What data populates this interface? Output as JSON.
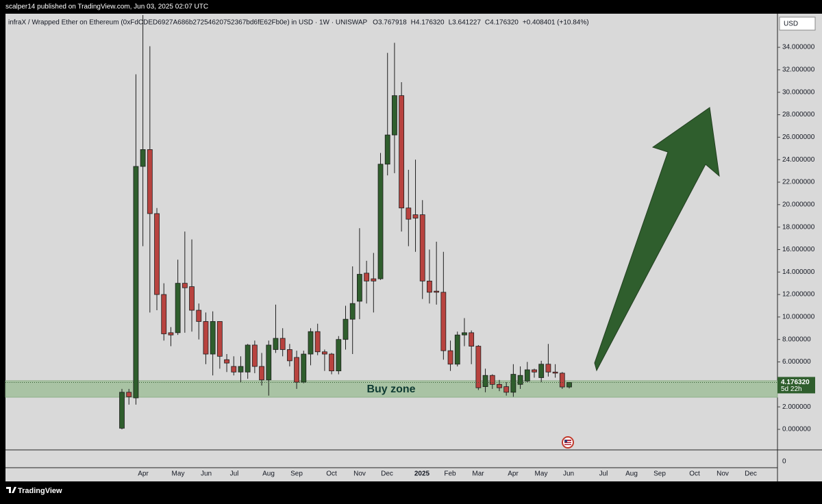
{
  "chart_data": {
    "type": "candlestick",
    "attribution": "scalper14 published on TradingView.com, Jun 03, 2025 02:07 UTC",
    "symbol": "infraX / Wrapped Ether on Ethereum (0xFdCDED6927A686b27254620752367bd6fE62Fb0e) in USD · 1W · UNISWAP",
    "ohlc_text": [
      "O3.767918",
      "H4.176320",
      "L3.641227",
      "C4.176320",
      "+0.408401 (+10.84%)"
    ],
    "currency": "USD",
    "brand": "TradingView",
    "x_labels": [
      "Apr",
      "May",
      "Jun",
      "Jul",
      "Aug",
      "Sep",
      "Oct",
      "Nov",
      "Dec",
      "2025",
      "Feb",
      "Mar",
      "Apr",
      "May",
      "Jun",
      "Jul",
      "Aug",
      "Sep",
      "Oct",
      "Nov",
      "Dec"
    ],
    "open": [
      0.1,
      3.3,
      2.8,
      23.4,
      24.9,
      19.2,
      12.0,
      8.6,
      8.6,
      13.0,
      12.7,
      10.6,
      9.6,
      6.7,
      9.6,
      6.2,
      5.6,
      5.1,
      5.1,
      7.5,
      5.6,
      4.4,
      7.1,
      8.1,
      7.1,
      6.4,
      4.2,
      6.7,
      8.7,
      6.9,
      6.7,
      5.2,
      8.0,
      9.8,
      11.4,
      13.9,
      13.4,
      13.4,
      23.6,
      26.2,
      29.7,
      19.7,
      19.1,
      19.1,
      13.2,
      12.3,
      12.2,
      7.0,
      5.8,
      8.4,
      8.6,
      7.4,
      3.8,
      4.8,
      4.0,
      3.8,
      3.3,
      4.0,
      4.3,
      5.3,
      4.6,
      5.8,
      5.1,
      5.0,
      3.767918
    ],
    "high": [
      3.6,
      3.6,
      31.6,
      38.0,
      34.1,
      19.7,
      13.0,
      9.1,
      15.1,
      17.6,
      16.9,
      11.2,
      10.4,
      10.5,
      9.6,
      6.7,
      6.5,
      6.5,
      7.6,
      7.9,
      6.8,
      7.9,
      11.1,
      9.0,
      7.6,
      7.0,
      7.0,
      9.0,
      9.4,
      7.1,
      6.8,
      8.3,
      11.0,
      14.5,
      17.9,
      15.0,
      15.7,
      24.6,
      33.5,
      34.4,
      30.9,
      23.1,
      24.0,
      20.4,
      16.0,
      16.7,
      15.8,
      7.9,
      8.7,
      9.9,
      8.8,
      7.5,
      5.4,
      4.9,
      4.4,
      4.2,
      5.8,
      5.6,
      6.0,
      5.4,
      6.1,
      7.6,
      5.8,
      5.1,
      4.17632
    ],
    "low": [
      0.0,
      2.2,
      2.2,
      16.3,
      10.4,
      10.6,
      7.9,
      7.4,
      8.4,
      8.6,
      8.7,
      8.0,
      5.8,
      4.8,
      5.4,
      5.1,
      4.8,
      4.2,
      4.5,
      5.0,
      3.9,
      3.0,
      6.8,
      6.5,
      5.6,
      3.6,
      4.1,
      5.7,
      6.6,
      5.2,
      4.9,
      4.9,
      7.1,
      6.7,
      9.8,
      11.2,
      10.4,
      13.3,
      22.6,
      22.8,
      17.6,
      16.3,
      15.8,
      11.6,
      11.2,
      11.1,
      6.2,
      5.2,
      5.6,
      7.4,
      5.8,
      3.5,
      3.3,
      3.6,
      3.4,
      3.0,
      2.9,
      3.6,
      4.2,
      4.6,
      4.2,
      4.7,
      4.6,
      3.6,
      3.641227
    ],
    "close": [
      3.3,
      2.9,
      23.4,
      24.9,
      19.2,
      12.0,
      8.5,
      8.4,
      13.0,
      12.6,
      10.6,
      9.6,
      6.7,
      9.6,
      6.5,
      5.9,
      5.1,
      5.6,
      7.5,
      5.6,
      4.4,
      7.5,
      8.1,
      7.1,
      6.1,
      4.2,
      6.7,
      8.7,
      6.9,
      6.7,
      5.2,
      8.0,
      9.8,
      11.2,
      13.8,
      13.2,
      13.2,
      23.6,
      26.2,
      29.7,
      19.7,
      18.7,
      18.8,
      13.2,
      12.2,
      12.2,
      7.0,
      5.8,
      8.4,
      8.6,
      7.4,
      3.7,
      4.8,
      4.0,
      3.7,
      3.3,
      4.9,
      4.8,
      5.3,
      5.1,
      5.8,
      5.1,
      5.0,
      3.77,
      4.17632
    ],
    "up_color": "#2f5e2d",
    "down_color": "#b8433f",
    "ylim": [
      -1.83,
      36.87
    ],
    "yticks": [
      {
        "value": 0,
        "label": "0.000000"
      },
      {
        "value": 2,
        "label": "2.000000"
      },
      {
        "value": 4,
        "label": "4.000000"
      },
      {
        "value": 6,
        "label": "6.000000"
      },
      {
        "value": 8,
        "label": "8.000000"
      },
      {
        "value": 10,
        "label": "10.000000"
      },
      {
        "value": 12,
        "label": "12.000000"
      },
      {
        "value": 14,
        "label": "14.000000"
      },
      {
        "value": 16,
        "label": "16.000000"
      },
      {
        "value": 18,
        "label": "18.000000"
      },
      {
        "value": 20,
        "label": "20.000000"
      },
      {
        "value": 22,
        "label": "22.000000"
      },
      {
        "value": 24,
        "label": "24.000000"
      },
      {
        "value": 26,
        "label": "26.000000"
      },
      {
        "value": 28,
        "label": "28.000000"
      },
      {
        "value": 30,
        "label": "30.000000"
      },
      {
        "value": 32,
        "label": "32.000000"
      },
      {
        "value": 34,
        "label": "34.000000"
      }
    ],
    "last_price": {
      "value": 4.17632,
      "label": "4.176320"
    },
    "countdown": "5d 22h",
    "zone": {
      "label": "Buy zone",
      "low": 2.86,
      "high": 4.33,
      "color": "#a9c3a4"
    },
    "lower_pane_tick": "0"
  }
}
